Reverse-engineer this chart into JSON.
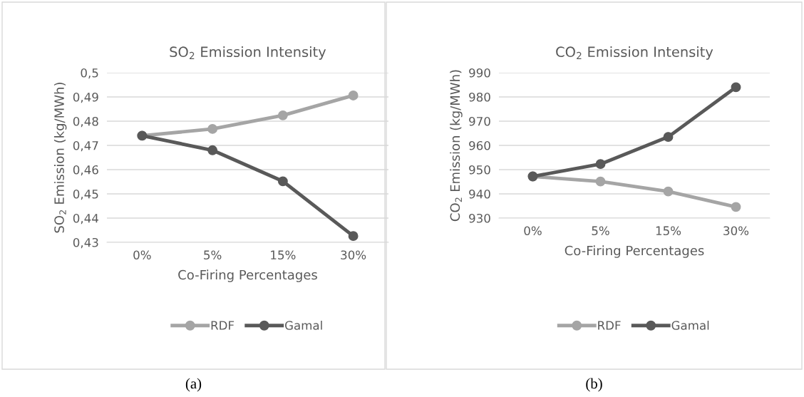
{
  "chart_data": [
    {
      "type": "line",
      "title": "SO$_{2}$ Emission Intensity",
      "xlabel": "Co-Firing Percentages",
      "ylabel": "SO$_{2}$ Emission (kg/MWh)",
      "categories": [
        "0%",
        "5%",
        "15%",
        "30%"
      ],
      "series": [
        {
          "name": "RDF",
          "color": "#a5a5a5",
          "values": [
            0.474,
            0.4768,
            0.4824,
            0.4906
          ]
        },
        {
          "name": "Gamal",
          "color": "#595959",
          "values": [
            0.474,
            0.468,
            0.4552,
            0.4326
          ]
        }
      ],
      "ylim": [
        0.43,
        0.5
      ],
      "yticks": [
        {
          "value": 0.43,
          "label": "0,43"
        },
        {
          "value": 0.44,
          "label": "0,44"
        },
        {
          "value": 0.45,
          "label": "0,45"
        },
        {
          "value": 0.46,
          "label": "0,46"
        },
        {
          "value": 0.47,
          "label": "0,47"
        },
        {
          "value": 0.48,
          "label": "0,48"
        },
        {
          "value": 0.49,
          "label": "0,49"
        },
        {
          "value": 0.5,
          "label": "0,5"
        }
      ],
      "grid": "y",
      "legend": "bottom",
      "marker": "circle",
      "line_style": "solid",
      "annotations": [
        "(a)"
      ]
    },
    {
      "type": "line",
      "title": "CO$_{2}$ Emission Intensity",
      "xlabel": "Co-Firing Percentages",
      "ylabel": "CO$_{2}$ Emission (kg/MWh)",
      "categories": [
        "0%",
        "5%",
        "15%",
        "30%"
      ],
      "series": [
        {
          "name": "RDF",
          "color": "#a5a5a5",
          "values": [
            947.2,
            945.1,
            941.0,
            934.6
          ]
        },
        {
          "name": "Gamal",
          "color": "#595959",
          "values": [
            947.2,
            952.3,
            963.5,
            984.0
          ]
        }
      ],
      "ylim": [
        930,
        990
      ],
      "yticks": [
        930,
        940,
        950,
        960,
        970,
        980,
        990
      ],
      "grid": "y",
      "legend": "bottom",
      "marker": "circle",
      "line_style": "solid",
      "annotations": [
        "(b)"
      ]
    }
  ]
}
